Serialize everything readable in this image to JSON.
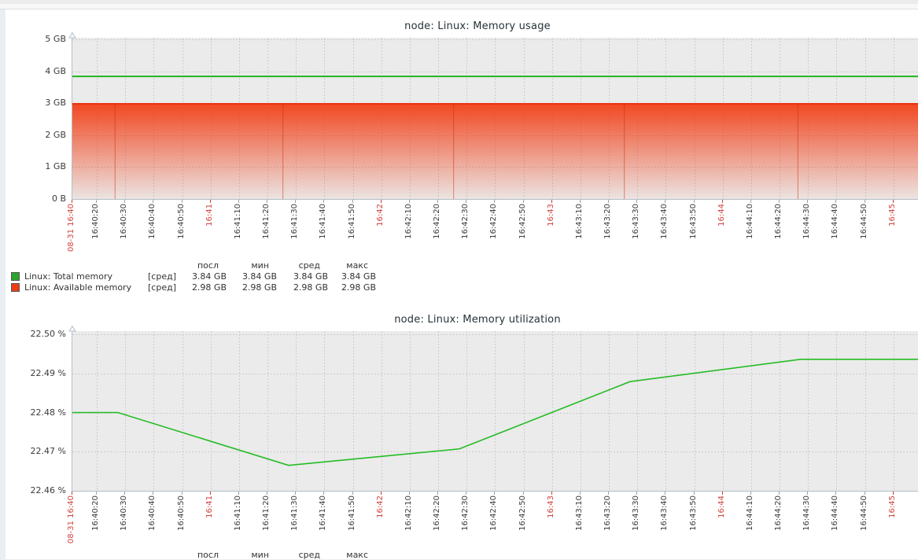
{
  "style": {
    "page_bg": "#e9eef3",
    "panel_bg": "#ffffff",
    "plot_bg": "#ebebeb",
    "grid_color": "#cccccc",
    "axis_color": "#b3bec7",
    "tick_label_color": "#3b3b3b",
    "red_tick_label_color": "#d2423c",
    "title_color": "#253238",
    "green": "#22b422",
    "green_swatch": "#2DA52D",
    "red_area": "#f23a11",
    "red_line": "#e8330e",
    "red_swatch": "#F03C14"
  },
  "time_ticks": [
    {
      "label": "08-31 16:40",
      "red": true
    },
    {
      "label": "16:40:20"
    },
    {
      "label": "16:40:30"
    },
    {
      "label": "16:40:40"
    },
    {
      "label": "16:40:50"
    },
    {
      "label": "16:41",
      "red": true
    },
    {
      "label": "16:41:10"
    },
    {
      "label": "16:41:20"
    },
    {
      "label": "16:41:30"
    },
    {
      "label": "16:41:40"
    },
    {
      "label": "16:41:50"
    },
    {
      "label": "16:42",
      "red": true
    },
    {
      "label": "16:42:10"
    },
    {
      "label": "16:42:20"
    },
    {
      "label": "16:42:30"
    },
    {
      "label": "16:42:40"
    },
    {
      "label": "16:42:50"
    },
    {
      "label": "16:43",
      "red": true
    },
    {
      "label": "16:43:10"
    },
    {
      "label": "16:43:20"
    },
    {
      "label": "16:43:30"
    },
    {
      "label": "16:43:40"
    },
    {
      "label": "16:43:50"
    },
    {
      "label": "16:44",
      "red": true
    },
    {
      "label": "16:44:10"
    },
    {
      "label": "16:44:20"
    },
    {
      "label": "16:44:30"
    },
    {
      "label": "16:44:40"
    },
    {
      "label": "16:44:50"
    },
    {
      "label": "16:45",
      "red": true
    }
  ],
  "chart_data": [
    {
      "type": "line",
      "title": "node: Linux: Memory usage",
      "y_unit": "GB",
      "ylim": [
        0,
        5
      ],
      "y_tick_labels": [
        "5 GB",
        "4 GB",
        "3 GB",
        "2 GB",
        "1 GB",
        "0 B"
      ],
      "x_range": "08-31 16:40 — 16:45, ticks every 10 s",
      "grid": true,
      "legend_position": "bottom",
      "series": [
        {
          "name": "Linux: Total memory",
          "style": "line",
          "color": "#22b422",
          "constant_value_gb": 3.84
        },
        {
          "name": "Linux: Available memory",
          "style": "gradient-area",
          "color": "#f23a11",
          "constant_value_gb": 2.98,
          "break_seconds": [
            15,
            74,
            134,
            194,
            255
          ]
        }
      ],
      "legend": {
        "headers": [
          "посл",
          "мин",
          "сред",
          "макс"
        ],
        "rows": [
          {
            "name": "Linux: Total memory",
            "func": "[сред]",
            "values": [
              "3.84 GB",
              "3.84 GB",
              "3.84 GB",
              "3.84 GB"
            ],
            "color": "#2DA52D"
          },
          {
            "name": "Linux: Available memory",
            "func": "[сред]",
            "values": [
              "2.98 GB",
              "2.98 GB",
              "2.98 GB",
              "2.98 GB"
            ],
            "color": "#F03C14"
          }
        ]
      }
    },
    {
      "type": "line",
      "title": "node: Linux: Memory utilization",
      "y_unit": "%",
      "ylim": [
        22.46,
        22.5
      ],
      "y_tick_labels": [
        "22.50 %",
        "22.49 %",
        "22.48 %",
        "22.47 %",
        "22.46 %"
      ],
      "x_range": "08-31 16:40 — 16:45, ticks every 10 s",
      "grid": true,
      "legend_position": "bottom",
      "series": [
        {
          "name": "Linux: Memory utilization",
          "style": "line",
          "color": "#25bc25",
          "points": [
            {
              "sec": 0,
              "v": 22.48
            },
            {
              "sec": 16,
              "v": 22.48
            },
            {
              "sec": 76,
              "v": 22.4665
            },
            {
              "sec": 136,
              "v": 22.4707
            },
            {
              "sec": 196,
              "v": 22.4879
            },
            {
              "sec": 256,
              "v": 22.4936
            },
            {
              "sec": 298,
              "v": 22.4936
            }
          ]
        }
      ],
      "legend": {
        "headers": [
          "посл",
          "мин",
          "сред",
          "макс"
        ],
        "rows": []
      }
    }
  ]
}
